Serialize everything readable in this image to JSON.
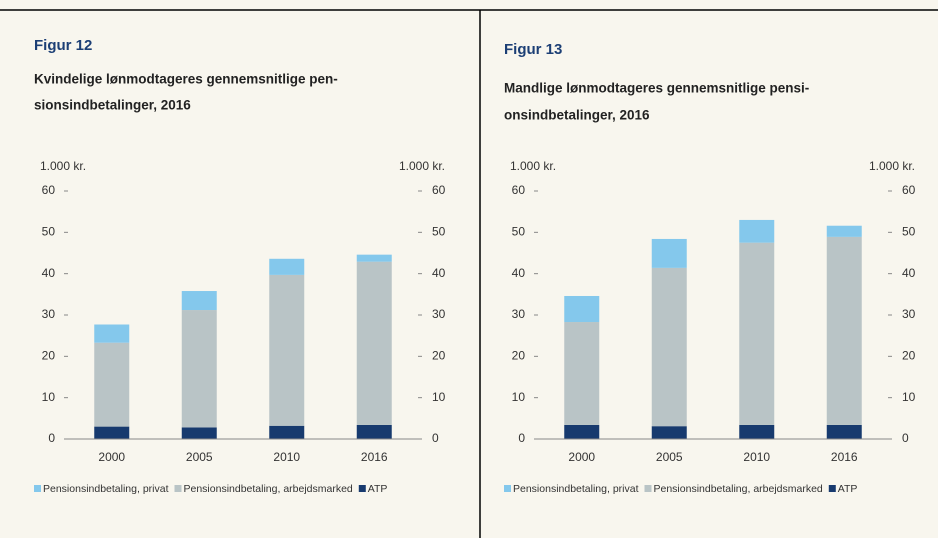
{
  "chart_data": [
    {
      "type": "bar",
      "stacked": true,
      "figure": "Figur 12",
      "title": [
        "Kvindelige lønmodtageres gennemsnitlige pen-",
        "sionsindbetalinger, 2016"
      ],
      "ylabel": "1.000 kr.",
      "y2label": "1.000 kr.",
      "categories": [
        "2000",
        "2005",
        "2010",
        "2016"
      ],
      "series": [
        {
          "name": "ATP",
          "color": "#173a6e",
          "values": [
            3.0,
            2.8,
            3.2,
            3.4
          ]
        },
        {
          "name": "Pensionsindbetaling, arbejdsmarked",
          "color": "#b9c4c6",
          "values": [
            20.3,
            28.4,
            36.5,
            39.5
          ]
        },
        {
          "name": "Pensionsindbetaling, privat",
          "color": "#84c8ec",
          "values": [
            4.4,
            4.6,
            3.9,
            1.7
          ]
        }
      ],
      "ylim": [
        0,
        60
      ],
      "yticks": [
        0,
        10,
        20,
        30,
        40,
        50,
        60
      ],
      "y2lim": [
        0,
        60
      ],
      "y2ticks": [
        0,
        10,
        20,
        30,
        40,
        50,
        60
      ]
    },
    {
      "type": "bar",
      "stacked": true,
      "figure": "Figur 13",
      "title": [
        "Mandlige lønmodtageres gennemsnitlige pensi-",
        "onsindbetalinger, 2016"
      ],
      "ylabel": "1.000 kr.",
      "y2label": "1.000 kr.",
      "categories": [
        "2000",
        "2005",
        "2010",
        "2016"
      ],
      "series": [
        {
          "name": "ATP",
          "color": "#173a6e",
          "values": [
            3.4,
            3.1,
            3.4,
            3.4
          ]
        },
        {
          "name": "Pensionsindbetaling, arbejdsmarked",
          "color": "#b9c4c6",
          "values": [
            24.9,
            38.3,
            44.1,
            45.5
          ]
        },
        {
          "name": "Pensionsindbetaling, privat",
          "color": "#84c8ec",
          "values": [
            6.3,
            7.0,
            5.5,
            2.7
          ]
        }
      ],
      "ylim": [
        0,
        60
      ],
      "yticks": [
        0,
        10,
        20,
        30,
        40,
        50,
        60
      ],
      "y2lim": [
        0,
        60
      ],
      "y2ticks": [
        0,
        10,
        20,
        30,
        40,
        50,
        60
      ]
    }
  ]
}
